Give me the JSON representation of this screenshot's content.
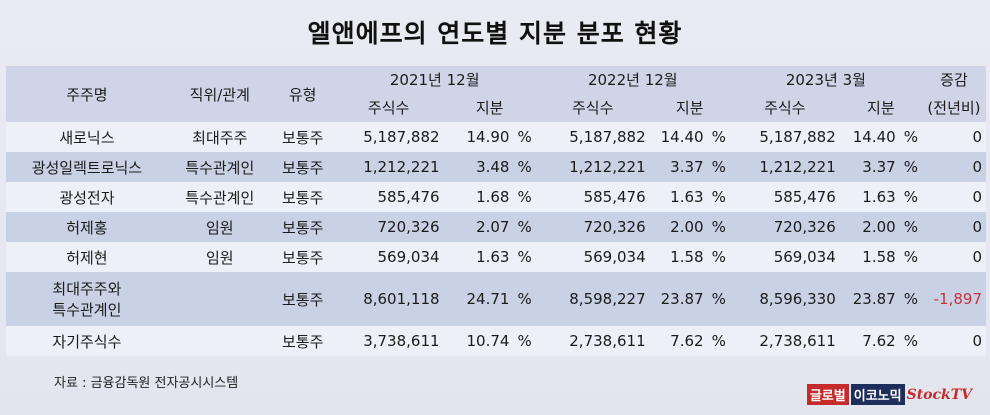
{
  "title": "엘앤에프의 연도별 지분 분포 현황",
  "watermark_text": "StockTV",
  "headers": {
    "name": "주주명",
    "role": "직위/관계",
    "type": "유형",
    "periods": [
      "2021년 12월",
      "2022년 12월",
      "2023년 3월"
    ],
    "shares": "주식수",
    "stake": "지분",
    "change_line1": "증감",
    "change_line2": "(전년비)"
  },
  "rows": [
    {
      "name": "새로닉스",
      "role": "최대주주",
      "type": "보통주",
      "s2021": "5,187,882",
      "p2021": "14.90",
      "s2022": "5,187,882",
      "p2022": "14.40",
      "s2023": "5,187,882",
      "p2023": "14.40",
      "change": "0"
    },
    {
      "name": "광성일렉트로닉스",
      "role": "특수관계인",
      "type": "보통주",
      "s2021": "1,212,221",
      "p2021": "3.48",
      "s2022": "1,212,221",
      "p2022": "3.37",
      "s2023": "1,212,221",
      "p2023": "3.37",
      "change": "0"
    },
    {
      "name": "광성전자",
      "role": "특수관계인",
      "type": "보통주",
      "s2021": "585,476",
      "p2021": "1.68",
      "s2022": "585,476",
      "p2022": "1.63",
      "s2023": "585,476",
      "p2023": "1.63",
      "change": "0"
    },
    {
      "name": "허제홍",
      "role": "임원",
      "type": "보통주",
      "s2021": "720,326",
      "p2021": "2.07",
      "s2022": "720,326",
      "p2022": "2.00",
      "s2023": "720,326",
      "p2023": "2.00",
      "change": "0"
    },
    {
      "name": "허제현",
      "role": "임원",
      "type": "보통주",
      "s2021": "569,034",
      "p2021": "1.63",
      "s2022": "569,034",
      "p2022": "1.58",
      "s2023": "569,034",
      "p2023": "1.58",
      "change": "0"
    },
    {
      "name_line1": "최대주주와",
      "name_line2": "특수관계인",
      "role": "",
      "type": "보통주",
      "s2021": "8,601,118",
      "p2021": "24.71",
      "s2022": "8,598,227",
      "p2022": "23.87",
      "s2023": "8,596,330",
      "p2023": "23.87",
      "change": "-1,897"
    },
    {
      "name": "자기주식수",
      "role": "",
      "type": "보통주",
      "s2021": "3,738,611",
      "p2021": "10.74",
      "s2022": "2,738,611",
      "p2022": "7.62",
      "s2023": "2,738,611",
      "p2023": "7.62",
      "change": "0"
    }
  ],
  "percent_sign": "%",
  "source": "자료 : 금융감독원 전자공시시스템",
  "logo": {
    "part1": "글로벌",
    "part2": "이코노믹",
    "part3": "StockTV"
  }
}
